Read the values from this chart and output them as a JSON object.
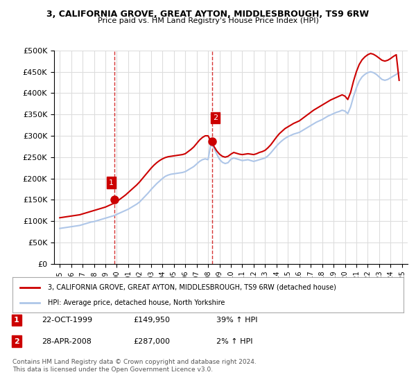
{
  "title": "3, CALIFORNIA GROVE, GREAT AYTON, MIDDLESBROUGH, TS9 6RW",
  "subtitle": "Price paid vs. HM Land Registry's House Price Index (HPI)",
  "ylabel_ticks": [
    "£0",
    "£50K",
    "£100K",
    "£150K",
    "£200K",
    "£250K",
    "£300K",
    "£350K",
    "£400K",
    "£450K",
    "£500K"
  ],
  "ytick_values": [
    0,
    50000,
    100000,
    150000,
    200000,
    250000,
    300000,
    350000,
    400000,
    450000,
    500000
  ],
  "xlim_start": 1994.5,
  "xlim_end": 2025.5,
  "ylim_min": 0,
  "ylim_max": 500000,
  "hpi_color": "#aec6e8",
  "price_color": "#cc0000",
  "marker1_date": 1999.81,
  "marker1_price": 149950,
  "marker2_date": 2008.33,
  "marker2_price": 287000,
  "marker1_label": "1",
  "marker2_label": "2",
  "legend_line1": "3, CALIFORNIA GROVE, GREAT AYTON, MIDDLESBROUGH, TS9 6RW (detached house)",
  "legend_line2": "HPI: Average price, detached house, North Yorkshire",
  "table_row1": [
    "1",
    "22-OCT-1999",
    "£149,950",
    "39% ↑ HPI"
  ],
  "table_row2": [
    "2",
    "28-APR-2008",
    "£287,000",
    "2% ↑ HPI"
  ],
  "footnote": "Contains HM Land Registry data © Crown copyright and database right 2024.\nThis data is licensed under the Open Government Licence v3.0.",
  "background_color": "#ffffff",
  "plot_bg_color": "#ffffff",
  "grid_color": "#dddddd",
  "hpi_data_x": [
    1995.0,
    1995.25,
    1995.5,
    1995.75,
    1996.0,
    1996.25,
    1996.5,
    1996.75,
    1997.0,
    1997.25,
    1997.5,
    1997.75,
    1998.0,
    1998.25,
    1998.5,
    1998.75,
    1999.0,
    1999.25,
    1999.5,
    1999.75,
    2000.0,
    2000.25,
    2000.5,
    2000.75,
    2001.0,
    2001.25,
    2001.5,
    2001.75,
    2002.0,
    2002.25,
    2002.5,
    2002.75,
    2003.0,
    2003.25,
    2003.5,
    2003.75,
    2004.0,
    2004.25,
    2004.5,
    2004.75,
    2005.0,
    2005.25,
    2005.5,
    2005.75,
    2006.0,
    2006.25,
    2006.5,
    2006.75,
    2007.0,
    2007.25,
    2007.5,
    2007.75,
    2008.0,
    2008.25,
    2008.5,
    2008.75,
    2009.0,
    2009.25,
    2009.5,
    2009.75,
    2010.0,
    2010.25,
    2010.5,
    2010.75,
    2011.0,
    2011.25,
    2011.5,
    2011.75,
    2012.0,
    2012.25,
    2012.5,
    2012.75,
    2013.0,
    2013.25,
    2013.5,
    2013.75,
    2014.0,
    2014.25,
    2014.5,
    2014.75,
    2015.0,
    2015.25,
    2015.5,
    2015.75,
    2016.0,
    2016.25,
    2016.5,
    2016.75,
    2017.0,
    2017.25,
    2017.5,
    2017.75,
    2018.0,
    2018.25,
    2018.5,
    2018.75,
    2019.0,
    2019.25,
    2019.5,
    2019.75,
    2020.0,
    2020.25,
    2020.5,
    2020.75,
    2021.0,
    2021.25,
    2021.5,
    2021.75,
    2022.0,
    2022.25,
    2022.5,
    2022.75,
    2023.0,
    2023.25,
    2023.5,
    2023.75,
    2024.0,
    2024.25,
    2024.5,
    2024.75
  ],
  "hpi_data_y": [
    83000,
    84000,
    85000,
    86000,
    87000,
    88000,
    89000,
    90000,
    92000,
    94000,
    96000,
    98000,
    99000,
    101000,
    103000,
    105000,
    107000,
    109000,
    111000,
    113000,
    116000,
    119000,
    122000,
    125000,
    128000,
    132000,
    136000,
    140000,
    145000,
    152000,
    159000,
    166000,
    174000,
    181000,
    188000,
    194000,
    200000,
    205000,
    208000,
    210000,
    211000,
    212000,
    213000,
    214000,
    216000,
    220000,
    224000,
    228000,
    234000,
    240000,
    244000,
    246000,
    244000,
    282000,
    272000,
    258000,
    245000,
    238000,
    235000,
    237000,
    245000,
    248000,
    246000,
    244000,
    242000,
    243000,
    244000,
    242000,
    240000,
    242000,
    244000,
    246000,
    248000,
    253000,
    260000,
    268000,
    276000,
    283000,
    289000,
    294000,
    298000,
    301000,
    304000,
    306000,
    308000,
    312000,
    316000,
    320000,
    324000,
    328000,
    332000,
    335000,
    338000,
    342000,
    346000,
    349000,
    352000,
    355000,
    357000,
    360000,
    358000,
    352000,
    368000,
    392000,
    412000,
    428000,
    438000,
    444000,
    448000,
    450000,
    448000,
    444000,
    438000,
    432000,
    430000,
    432000,
    436000,
    440000,
    444000,
    448000
  ],
  "price_data_x": [
    1995.0,
    1995.25,
    1995.5,
    1995.75,
    1996.0,
    1996.25,
    1996.5,
    1996.75,
    1997.0,
    1997.25,
    1997.5,
    1997.75,
    1998.0,
    1998.25,
    1998.5,
    1998.75,
    1999.0,
    1999.25,
    1999.5,
    1999.75,
    2000.0,
    2000.25,
    2000.5,
    2000.75,
    2001.0,
    2001.25,
    2001.5,
    2001.75,
    2002.0,
    2002.25,
    2002.5,
    2002.75,
    2003.0,
    2003.25,
    2003.5,
    2003.75,
    2004.0,
    2004.25,
    2004.5,
    2004.75,
    2005.0,
    2005.25,
    2005.5,
    2005.75,
    2006.0,
    2006.25,
    2006.5,
    2006.75,
    2007.0,
    2007.25,
    2007.5,
    2007.75,
    2008.0,
    2008.25,
    2008.5,
    2008.75,
    2009.0,
    2009.25,
    2009.5,
    2009.75,
    2010.0,
    2010.25,
    2010.5,
    2010.75,
    2011.0,
    2011.25,
    2011.5,
    2011.75,
    2012.0,
    2012.25,
    2012.5,
    2012.75,
    2013.0,
    2013.25,
    2013.5,
    2013.75,
    2014.0,
    2014.25,
    2014.5,
    2014.75,
    2015.0,
    2015.25,
    2015.5,
    2015.75,
    2016.0,
    2016.25,
    2016.5,
    2016.75,
    2017.0,
    2017.25,
    2017.5,
    2017.75,
    2018.0,
    2018.25,
    2018.5,
    2018.75,
    2019.0,
    2019.25,
    2019.5,
    2019.75,
    2020.0,
    2020.25,
    2020.5,
    2020.75,
    2021.0,
    2021.25,
    2021.5,
    2021.75,
    2022.0,
    2022.25,
    2022.5,
    2022.75,
    2023.0,
    2023.25,
    2023.5,
    2023.75,
    2024.0,
    2024.25,
    2024.5,
    2024.75
  ],
  "price_data_y": [
    108000,
    109000,
    110000,
    111000,
    112000,
    113000,
    114000,
    115000,
    117000,
    119000,
    121000,
    123000,
    125000,
    127000,
    129000,
    131000,
    133000,
    136000,
    139000,
    142000,
    146000,
    151000,
    156000,
    161000,
    167000,
    173000,
    179000,
    185000,
    192000,
    200000,
    208000,
    216000,
    224000,
    231000,
    237000,
    242000,
    246000,
    249000,
    251000,
    252000,
    253000,
    254000,
    255000,
    256000,
    258000,
    263000,
    268000,
    274000,
    282000,
    290000,
    296000,
    300000,
    300000,
    287000,
    276000,
    265000,
    257000,
    252000,
    250000,
    252000,
    257000,
    261000,
    259000,
    257000,
    256000,
    257000,
    258000,
    257000,
    256000,
    258000,
    261000,
    263000,
    266000,
    272000,
    279000,
    288000,
    297000,
    305000,
    311000,
    317000,
    321000,
    325000,
    329000,
    332000,
    335000,
    340000,
    345000,
    350000,
    355000,
    360000,
    364000,
    368000,
    372000,
    376000,
    380000,
    384000,
    387000,
    390000,
    393000,
    396000,
    393000,
    385000,
    402000,
    428000,
    450000,
    467000,
    478000,
    485000,
    490000,
    493000,
    491000,
    487000,
    482000,
    477000,
    475000,
    477000,
    481000,
    486000,
    490000,
    430000
  ]
}
